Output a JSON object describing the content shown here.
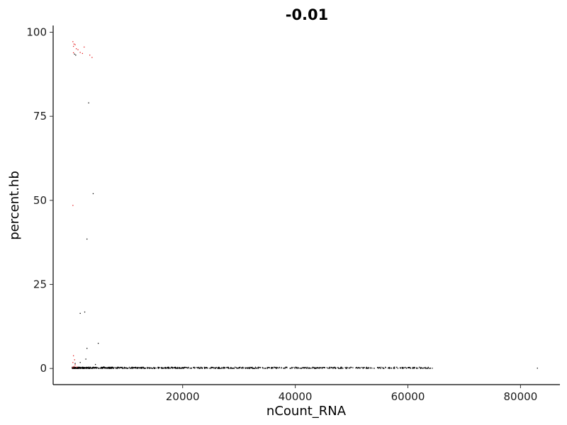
{
  "chart_data": {
    "type": "scatter",
    "title": "-0.01",
    "xlabel": "nCount_RNA",
    "ylabel": "percent.hb",
    "xlim": [
      -3000,
      87000
    ],
    "ylim": [
      -4.8,
      102
    ],
    "xticks": [
      20000,
      40000,
      60000,
      80000
    ],
    "xtick_labels": [
      "20000",
      "40000",
      "60000",
      "80000"
    ],
    "yticks": [
      0,
      25,
      50,
      75,
      100
    ],
    "ytick_labels": [
      "0",
      "25",
      "50",
      "75",
      "100"
    ],
    "grid": false,
    "legend": "none",
    "colors": {
      "group_a": "#000000",
      "group_b": "#e41a1c"
    },
    "series": [
      {
        "color": "#000000",
        "points": [
          [
            800,
            93.5
          ],
          [
            1000,
            93.2
          ],
          [
            3300,
            79
          ],
          [
            4100,
            52
          ],
          [
            3000,
            38.5
          ],
          [
            2600,
            16.8
          ],
          [
            1800,
            16.4
          ],
          [
            3000,
            6
          ],
          [
            5000,
            7.5
          ],
          [
            2800,
            2.8
          ],
          [
            1800,
            1.8
          ],
          [
            4500,
            1.2
          ],
          [
            900,
            1.5
          ],
          [
            6000,
            0.5
          ],
          [
            12500,
            0.2
          ],
          [
            17000,
            0.1
          ],
          [
            23000,
            0.1
          ],
          [
            29000,
            0.1
          ],
          [
            36000,
            0.1
          ],
          [
            42000,
            0.1
          ],
          [
            46000,
            0.1
          ],
          [
            49000,
            0.1
          ],
          [
            51500,
            0.1
          ],
          [
            54000,
            0.1
          ],
          [
            56500,
            0.1
          ],
          [
            59000,
            0.1
          ],
          [
            61000,
            0.1
          ],
          [
            62500,
            0.1
          ],
          [
            64000,
            0.1
          ],
          [
            83000,
            0.1
          ]
        ],
        "dense_band": {
          "x": [
            400,
            64500
          ],
          "y": [
            0,
            0.4
          ]
        }
      },
      {
        "color": "#e41a1c",
        "points": [
          [
            500,
            97.2
          ],
          [
            700,
            96.5
          ],
          [
            600,
            95.8
          ],
          [
            900,
            96.3
          ],
          [
            1100,
            95.1
          ],
          [
            1400,
            94.8
          ],
          [
            2500,
            95.6
          ],
          [
            2200,
            93.7
          ],
          [
            1800,
            94
          ],
          [
            3500,
            93.2
          ],
          [
            3900,
            92.5
          ],
          [
            600,
            93.9
          ],
          [
            500,
            48.5
          ],
          [
            600,
            3.8
          ],
          [
            800,
            2.6
          ],
          [
            500,
            1.8
          ],
          [
            900,
            1.1
          ],
          [
            700,
            0.6
          ],
          [
            1200,
            0.4
          ],
          [
            500,
            0.3
          ]
        ]
      }
    ]
  }
}
